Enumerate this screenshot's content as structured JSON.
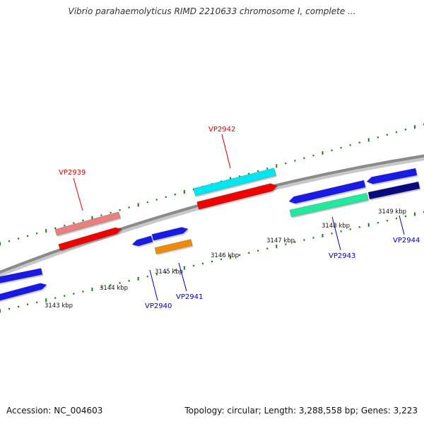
{
  "header": {
    "title": "Vibrio parahaemolyticus RIMD 2210633 chromosome I, complete ..."
  },
  "footer": {
    "accession": "Accession: NC_004603",
    "stats": "Topology: circular; Length: 3,288,558 bp; Genes: 3,223"
  },
  "colors": {
    "backbone": "#8a8a8a",
    "tick": "#1e7a1e",
    "highlight_label": "#d40000",
    "normal_label": "#0000b0"
  },
  "scale_labels": [
    "3143 kbp",
    "3144 kbp",
    "3145 kbp",
    "3146 kbp",
    "3147 kbp",
    "3148 kbp",
    "3149 kbp"
  ],
  "genes": [
    {
      "label": "VP2939",
      "color": "red"
    },
    {
      "label": "VP2940",
      "color": "blue"
    },
    {
      "label": "VP2941",
      "color": "blue"
    },
    {
      "label": "VP2942",
      "color": "red"
    },
    {
      "label": "VP2943",
      "color": "blue"
    },
    {
      "label": "VP2944",
      "color": "blue"
    }
  ]
}
